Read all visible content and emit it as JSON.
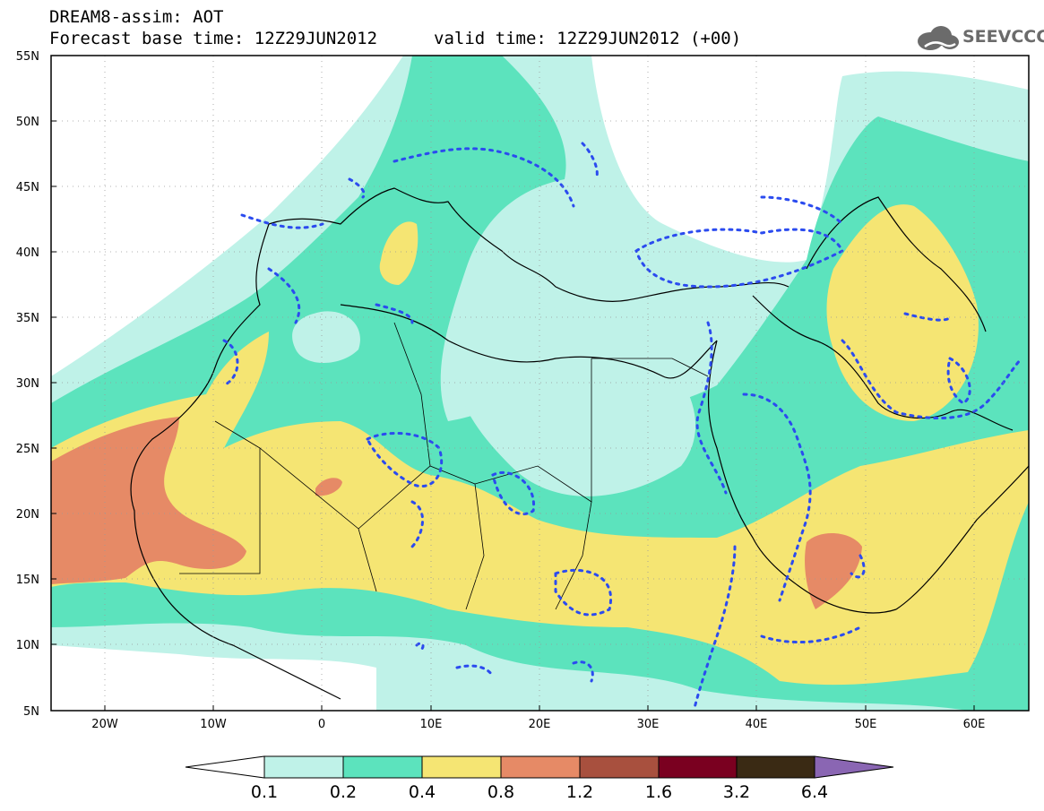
{
  "title": {
    "line1": "DREAM8-assim: AOT",
    "line2": "Forecast base time: 12Z29JUN2012",
    "valid": "valid time: 12Z29JUN2012 (+00)"
  },
  "logo": {
    "text": "SEEVCCC",
    "icon": "cloud-icon",
    "color": "#6b6b6b"
  },
  "map": {
    "lat_labels": [
      "55N",
      "50N",
      "45N",
      "40N",
      "35N",
      "30N",
      "25N",
      "20N",
      "15N",
      "10N",
      "5N"
    ],
    "lon_labels": [
      "20W",
      "10W",
      "0",
      "10E",
      "20E",
      "30E",
      "40E",
      "50E",
      "60E"
    ],
    "colors": {
      "level1": "#bff2e8",
      "level2": "#5ce3bd",
      "level3": "#f5e573",
      "level4": "#e68a66",
      "coast": "#000000",
      "dotted": "#2b4bef"
    }
  },
  "colorbar": {
    "ticks": [
      "0.1",
      "0.2",
      "0.4",
      "0.8",
      "1.2",
      "1.6",
      "3.2",
      "6.4"
    ],
    "colors": [
      "#ffffff",
      "#bff2e8",
      "#5ce3bd",
      "#f5e573",
      "#e68a66",
      "#a8503e",
      "#7a0020",
      "#3a2a14",
      "#8a66b3"
    ]
  }
}
